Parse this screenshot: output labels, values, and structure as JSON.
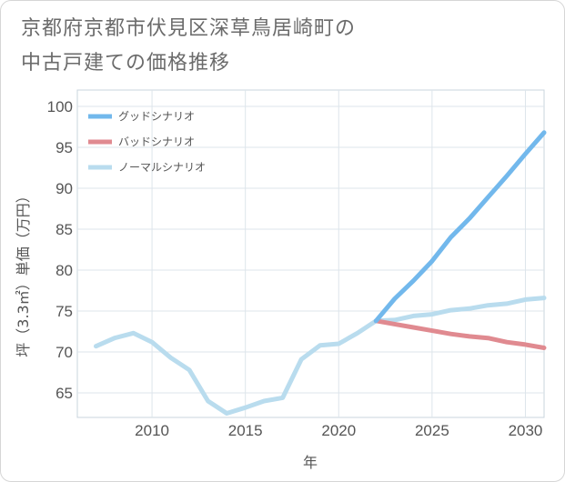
{
  "chart_data": {
    "type": "line",
    "title": "京都府京都市伏見区深草鳥居崎町の中古戸建ての価格推移",
    "title_lines": [
      "京都府京都市伏見区深草鳥居崎町の",
      "中古戸建ての価格推移"
    ],
    "xlabel": "年",
    "ylabel": "坪（3.3㎡）単価（万円）",
    "xlim": [
      2006,
      2031
    ],
    "ylim": [
      62,
      102
    ],
    "xticks": [
      2010,
      2015,
      2020,
      2025,
      2030
    ],
    "yticks": [
      65,
      70,
      75,
      80,
      85,
      90,
      95,
      100
    ],
    "legend_position": "top-left",
    "series": [
      {
        "name": "グッドシナリオ",
        "color": "#72b8ec",
        "x": [
          2022,
          2023,
          2024,
          2025,
          2026,
          2027,
          2028,
          2029,
          2030,
          2031
        ],
        "y": [
          73.8,
          76.5,
          78.7,
          81.1,
          84.0,
          86.3,
          88.9,
          91.5,
          94.2,
          96.8
        ]
      },
      {
        "name": "バッドシナリオ",
        "color": "#e08a90",
        "x": [
          2022,
          2023,
          2024,
          2025,
          2026,
          2027,
          2028,
          2029,
          2030,
          2031
        ],
        "y": [
          73.8,
          73.4,
          73.0,
          72.6,
          72.2,
          71.9,
          71.7,
          71.2,
          70.9,
          70.5
        ]
      },
      {
        "name": "ノーマルシナリオ",
        "color": "#b9dcee",
        "x": [
          2007,
          2008,
          2009,
          2010,
          2011,
          2012,
          2013,
          2014,
          2015,
          2016,
          2017,
          2018,
          2019,
          2020,
          2021,
          2022,
          2023,
          2024,
          2025,
          2026,
          2027,
          2028,
          2029,
          2030,
          2031
        ],
        "y": [
          70.7,
          71.7,
          72.3,
          71.2,
          69.3,
          67.8,
          64.0,
          62.5,
          63.2,
          64.0,
          64.4,
          69.1,
          70.8,
          71.0,
          72.3,
          73.8,
          73.9,
          74.4,
          74.6,
          75.1,
          75.3,
          75.7,
          75.9,
          76.4,
          76.6
        ]
      }
    ]
  }
}
